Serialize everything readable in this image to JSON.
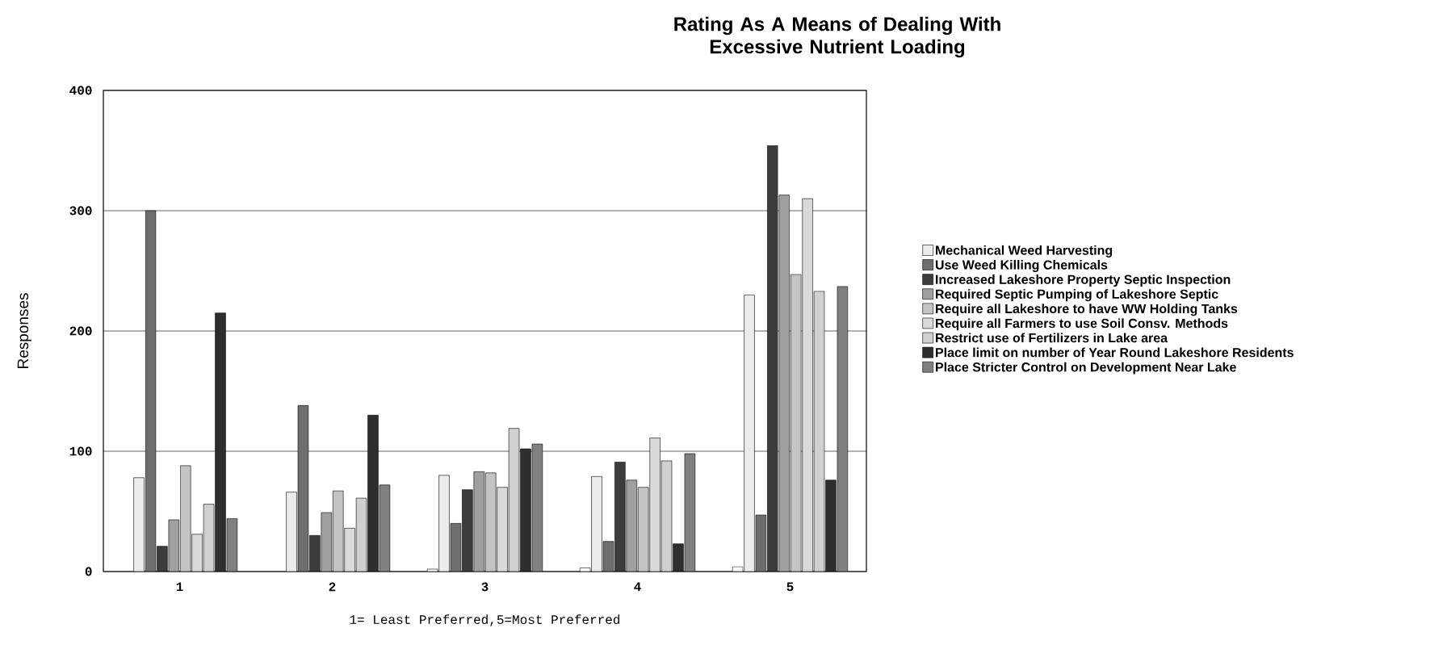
{
  "chart_data": {
    "type": "bar",
    "title": "Rating As A Means of Dealing With\nExcessive Nutrient Loading",
    "xlabel": "1= Least Preferred,5=Most Preferred",
    "ylabel": "Responses",
    "categories": [
      "1",
      "2",
      "3",
      "4",
      "5"
    ],
    "ylim": [
      0,
      400
    ],
    "yticks": [
      0,
      100,
      200,
      300,
      400
    ],
    "grid": "y",
    "legend": "right",
    "series": [
      {
        "color": "#ffffff",
        "values": [
          null,
          null,
          2,
          3,
          4
        ]
      },
      {
        "name": "Mechanical Weed Harvesting",
        "color": "#ececec",
        "values": [
          78,
          66,
          80,
          79,
          230
        ]
      },
      {
        "name": "Use Weed Killing Chemicals",
        "color": "#6e6e6e",
        "values": [
          300,
          138,
          40,
          25,
          47
        ]
      },
      {
        "name": "Increased Lakeshore Property Septic Inspection",
        "color": "#3c3c3c",
        "values": [
          21,
          30,
          68,
          91,
          354
        ]
      },
      {
        "name": "Required Septic Pumping of Lakeshore Septic",
        "color": "#a0a0a0",
        "values": [
          43,
          49,
          83,
          76,
          313
        ]
      },
      {
        "name": "Require all Lakeshore to have WW Holding Tanks",
        "color": "#c4c4c4",
        "values": [
          88,
          67,
          82,
          70,
          247
        ]
      },
      {
        "name": "Require all Farmers to use Soil Consv. Methods",
        "color": "#dadada",
        "values": [
          31,
          36,
          70,
          111,
          310
        ]
      },
      {
        "name": "Restrict use of Fertilizers in Lake area",
        "color": "#d0d0d0",
        "values": [
          56,
          61,
          119,
          92,
          233
        ]
      },
      {
        "name": "Place limit on number of Year Round Lakeshore Residents",
        "color": "#2e2e2e",
        "values": [
          215,
          130,
          102,
          23,
          76
        ]
      },
      {
        "name": "Place Stricter Control on Development Near Lake",
        "color": "#808080",
        "values": [
          44,
          72,
          106,
          98,
          237
        ]
      }
    ]
  }
}
